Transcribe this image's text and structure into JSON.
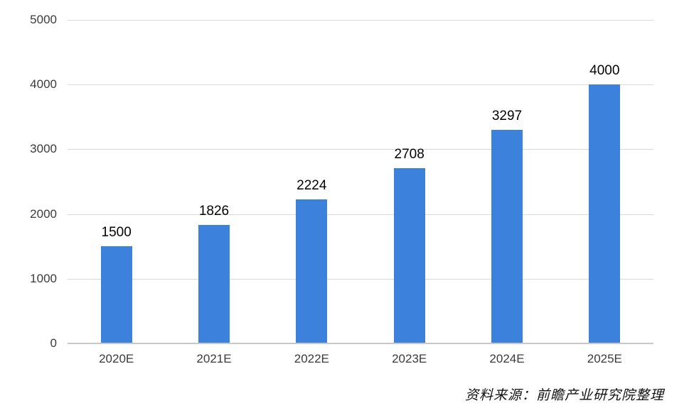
{
  "chart_data": {
    "type": "bar",
    "categories": [
      "2020E",
      "2021E",
      "2022E",
      "2023E",
      "2024E",
      "2025E"
    ],
    "values": [
      1500,
      1826,
      2224,
      2708,
      3297,
      4000
    ],
    "data_labels": [
      "1500",
      "1826",
      "2224",
      "2708",
      "3297",
      "4000"
    ],
    "title": "",
    "xlabel": "",
    "ylabel": "",
    "ylim": [
      0,
      5000
    ],
    "yticks": [
      0,
      1000,
      2000,
      3000,
      4000,
      5000
    ],
    "grid": true,
    "legend": "none",
    "bar_color": "#3c82dc"
  },
  "footer": {
    "source_note": "资料来源：前瞻产业研究院整理"
  },
  "colors": {
    "bar": "#3c82dc",
    "gridline": "#d9d9d9",
    "axis_line": "#c8c8c8",
    "tick_label": "#3b3b3b",
    "data_label": "#000000",
    "background": "#ffffff"
  }
}
